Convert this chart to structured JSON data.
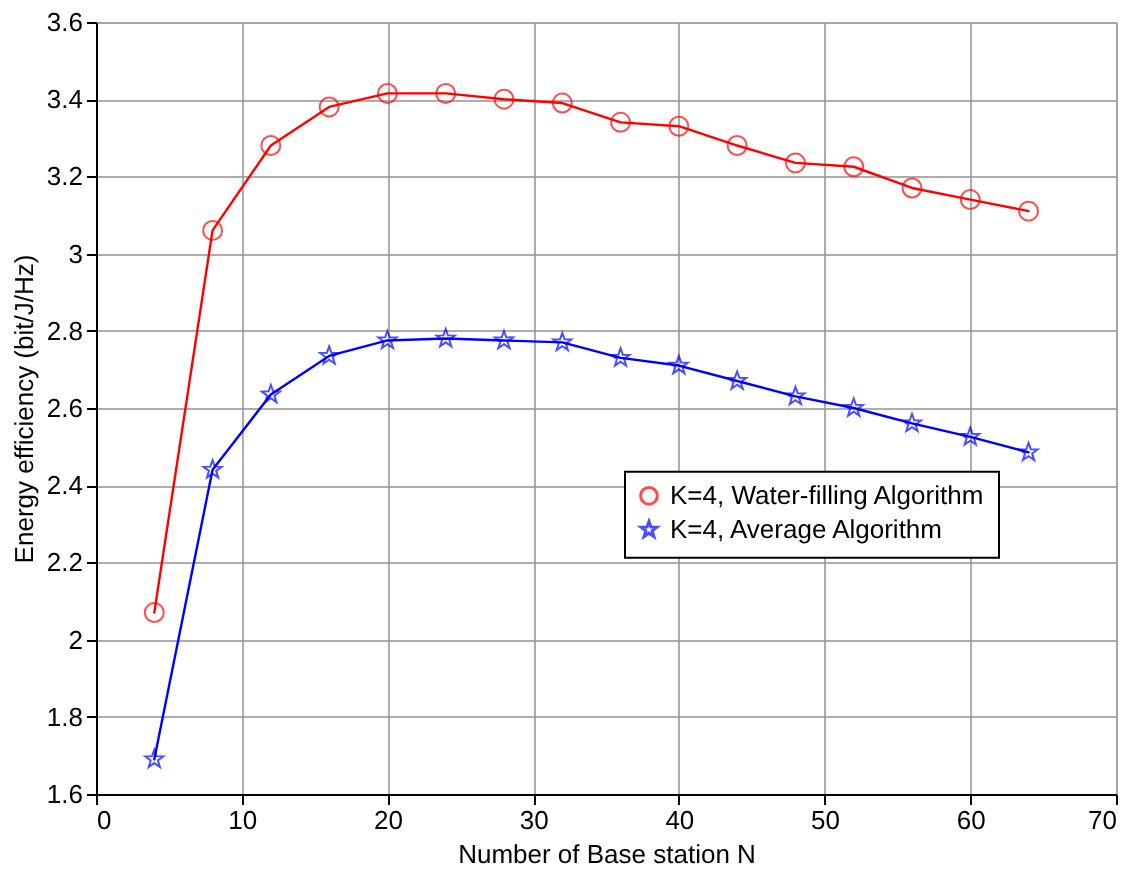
{
  "chart_data": {
    "type": "line",
    "xlabel": "Number of Base station N",
    "ylabel": "Energy efficiency (bit/J/Hz)",
    "x": [
      4,
      8,
      12,
      16,
      20,
      24,
      28,
      32,
      36,
      40,
      44,
      48,
      52,
      56,
      60,
      64
    ],
    "series": [
      {
        "name": "K=4, Water-filling Algorithm",
        "color": "#ff0000",
        "marker": "circle",
        "values": [
          2.07,
          3.06,
          3.28,
          3.38,
          3.415,
          3.415,
          3.4,
          3.39,
          3.34,
          3.33,
          3.28,
          3.235,
          3.225,
          3.17,
          3.14,
          3.11
        ]
      },
      {
        "name": "K=4, Average Algorithm",
        "color": "#0000ff",
        "marker": "star",
        "values": [
          1.69,
          2.44,
          2.635,
          2.735,
          2.775,
          2.78,
          2.775,
          2.77,
          2.73,
          2.71,
          2.67,
          2.63,
          2.6,
          2.56,
          2.525,
          2.485
        ]
      }
    ],
    "xlim": [
      0,
      70
    ],
    "xticks": [
      0,
      10,
      20,
      30,
      40,
      50,
      60,
      70
    ],
    "ylim": [
      1.6,
      3.6
    ],
    "yticks": [
      1.6,
      1.8,
      2,
      2.2,
      2.4,
      2.6,
      2.8,
      3,
      3.2,
      3.4,
      3.6
    ],
    "grid": true,
    "legend": "right",
    "line_style": "solid"
  }
}
